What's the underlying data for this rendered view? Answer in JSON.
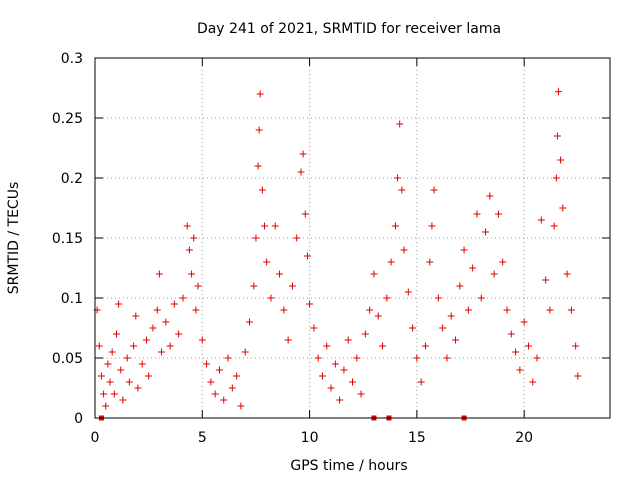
{
  "chart_data": {
    "type": "scatter",
    "title": "Day 241 of 2021, SRMTID for receiver lama",
    "xlabel": "GPS time / hours",
    "ylabel": "SRMTID / TECUs",
    "xlim": [
      0,
      24
    ],
    "ylim": [
      0,
      0.3
    ],
    "xticks": [
      0,
      5,
      10,
      15,
      20
    ],
    "xtick_labels": [
      "0",
      "5",
      "10",
      "15",
      "20"
    ],
    "yticks": [
      0,
      0.05,
      0.1,
      0.15,
      0.2,
      0.25,
      0.3
    ],
    "ytick_labels": [
      "0",
      "0.05",
      "0.1",
      "0.15",
      "0.2",
      "0.25",
      "0.3"
    ],
    "grid": true,
    "marker": "plus",
    "color": "#e00000",
    "series": [
      {
        "name": "SRMTID",
        "points": [
          [
            0.1,
            0.09
          ],
          [
            0.2,
            0.06
          ],
          [
            0.3,
            0.035
          ],
          [
            0.4,
            0.02
          ],
          [
            0.5,
            0.01
          ],
          [
            0.6,
            0.045
          ],
          [
            0.7,
            0.03
          ],
          [
            0.8,
            0.055
          ],
          [
            0.9,
            0.02
          ],
          [
            1.0,
            0.07
          ],
          [
            1.1,
            0.095
          ],
          [
            1.2,
            0.04
          ],
          [
            1.3,
            0.015
          ],
          [
            1.5,
            0.05
          ],
          [
            1.6,
            0.03
          ],
          [
            1.8,
            0.06
          ],
          [
            1.9,
            0.085
          ],
          [
            2.0,
            0.025
          ],
          [
            2.2,
            0.045
          ],
          [
            2.4,
            0.065
          ],
          [
            2.5,
            0.035
          ],
          [
            2.7,
            0.075
          ],
          [
            2.9,
            0.09
          ],
          [
            3.0,
            0.12
          ],
          [
            3.1,
            0.055
          ],
          [
            3.3,
            0.08
          ],
          [
            3.5,
            0.06
          ],
          [
            3.7,
            0.095
          ],
          [
            3.9,
            0.07
          ],
          [
            4.1,
            0.1
          ],
          [
            4.3,
            0.16
          ],
          [
            4.4,
            0.14
          ],
          [
            4.5,
            0.12
          ],
          [
            4.6,
            0.15
          ],
          [
            4.7,
            0.09
          ],
          [
            4.8,
            0.11
          ],
          [
            5.0,
            0.065
          ],
          [
            5.2,
            0.045
          ],
          [
            5.4,
            0.03
          ],
          [
            5.6,
            0.02
          ],
          [
            5.8,
            0.04
          ],
          [
            6.0,
            0.015
          ],
          [
            6.2,
            0.05
          ],
          [
            6.4,
            0.025
          ],
          [
            6.6,
            0.035
          ],
          [
            6.8,
            0.01
          ],
          [
            7.0,
            0.055
          ],
          [
            7.2,
            0.08
          ],
          [
            7.4,
            0.11
          ],
          [
            7.5,
            0.15
          ],
          [
            7.6,
            0.21
          ],
          [
            7.65,
            0.24
          ],
          [
            7.7,
            0.27
          ],
          [
            7.8,
            0.19
          ],
          [
            7.9,
            0.16
          ],
          [
            8.0,
            0.13
          ],
          [
            8.2,
            0.1
          ],
          [
            8.4,
            0.16
          ],
          [
            8.6,
            0.12
          ],
          [
            8.8,
            0.09
          ],
          [
            9.0,
            0.065
          ],
          [
            9.2,
            0.11
          ],
          [
            9.4,
            0.15
          ],
          [
            9.6,
            0.205
          ],
          [
            9.7,
            0.22
          ],
          [
            9.8,
            0.17
          ],
          [
            9.9,
            0.135
          ],
          [
            10.0,
            0.095
          ],
          [
            10.2,
            0.075
          ],
          [
            10.4,
            0.05
          ],
          [
            10.6,
            0.035
          ],
          [
            10.8,
            0.06
          ],
          [
            11.0,
            0.025
          ],
          [
            11.2,
            0.045
          ],
          [
            11.4,
            0.015
          ],
          [
            11.6,
            0.04
          ],
          [
            11.8,
            0.065
          ],
          [
            12.0,
            0.03
          ],
          [
            12.2,
            0.05
          ],
          [
            12.4,
            0.02
          ],
          [
            12.6,
            0.07
          ],
          [
            12.8,
            0.09
          ],
          [
            13.0,
            0.12
          ],
          [
            13.2,
            0.085
          ],
          [
            13.4,
            0.06
          ],
          [
            13.6,
            0.1
          ],
          [
            13.8,
            0.13
          ],
          [
            14.0,
            0.16
          ],
          [
            14.1,
            0.2
          ],
          [
            14.2,
            0.245
          ],
          [
            14.3,
            0.19
          ],
          [
            14.4,
            0.14
          ],
          [
            14.6,
            0.105
          ],
          [
            14.8,
            0.075
          ],
          [
            15.0,
            0.05
          ],
          [
            15.2,
            0.03
          ],
          [
            15.4,
            0.06
          ],
          [
            15.6,
            0.13
          ],
          [
            15.7,
            0.16
          ],
          [
            15.8,
            0.19
          ],
          [
            16.0,
            0.1
          ],
          [
            16.2,
            0.075
          ],
          [
            16.4,
            0.05
          ],
          [
            16.6,
            0.085
          ],
          [
            16.8,
            0.065
          ],
          [
            17.0,
            0.11
          ],
          [
            17.2,
            0.14
          ],
          [
            17.4,
            0.09
          ],
          [
            17.6,
            0.125
          ],
          [
            17.8,
            0.17
          ],
          [
            18.0,
            0.1
          ],
          [
            18.2,
            0.155
          ],
          [
            18.4,
            0.185
          ],
          [
            18.6,
            0.12
          ],
          [
            18.8,
            0.17
          ],
          [
            19.0,
            0.13
          ],
          [
            19.2,
            0.09
          ],
          [
            19.4,
            0.07
          ],
          [
            19.6,
            0.055
          ],
          [
            19.8,
            0.04
          ],
          [
            20.0,
            0.08
          ],
          [
            20.2,
            0.06
          ],
          [
            20.4,
            0.03
          ],
          [
            20.6,
            0.05
          ],
          [
            20.8,
            0.165
          ],
          [
            21.0,
            0.115
          ],
          [
            21.2,
            0.09
          ],
          [
            21.4,
            0.16
          ],
          [
            21.5,
            0.2
          ],
          [
            21.55,
            0.235
          ],
          [
            21.6,
            0.272
          ],
          [
            21.7,
            0.215
          ],
          [
            21.8,
            0.175
          ],
          [
            22.0,
            0.12
          ],
          [
            22.2,
            0.09
          ],
          [
            22.4,
            0.06
          ],
          [
            22.5,
            0.035
          ]
        ],
        "zero_markers": [
          0.3,
          13.0,
          13.7,
          17.2
        ]
      }
    ]
  }
}
